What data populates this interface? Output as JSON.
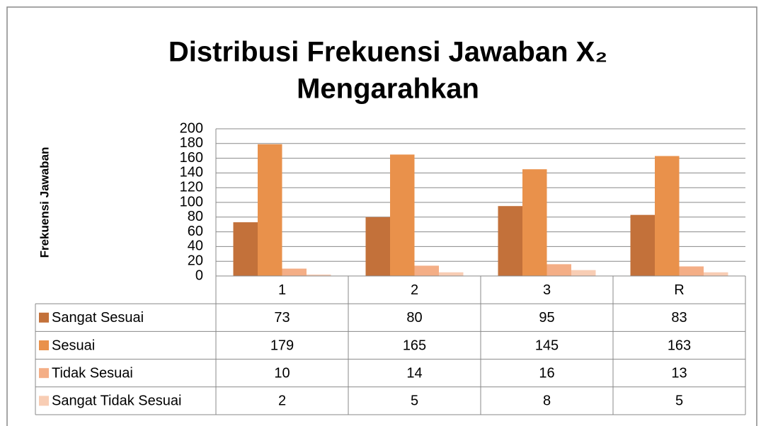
{
  "chart_data": {
    "type": "bar",
    "title": "Distribusi Frekuensi Jawaban X₂",
    "subtitle": "Mengarahkan",
    "y_label": "Frekuensi Jawaban",
    "categories": [
      "1",
      "2",
      "3",
      "R"
    ],
    "series": [
      {
        "name": "Sangat Sesuai",
        "color": "#c3713a",
        "values": [
          73,
          80,
          95,
          83
        ]
      },
      {
        "name": "Sesuai",
        "color": "#e9914b",
        "values": [
          179,
          165,
          145,
          163
        ]
      },
      {
        "name": "Tidak Sesuai",
        "color": "#f4ae86",
        "values": [
          10,
          14,
          16,
          13
        ]
      },
      {
        "name": "Sangat Tidak Sesuai",
        "color": "#f8cdb4",
        "values": [
          2,
          5,
          8,
          5
        ]
      }
    ],
    "ylim": [
      0,
      200
    ],
    "yticks": [
      0,
      20,
      40,
      60,
      80,
      100,
      120,
      140,
      160,
      180,
      200
    ],
    "grid": true
  }
}
